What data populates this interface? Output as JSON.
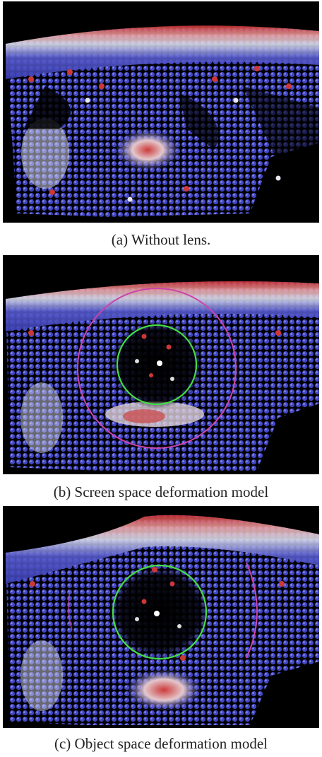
{
  "figure": {
    "panels": [
      {
        "id": "a",
        "caption": "(a) Without lens."
      },
      {
        "id": "b",
        "caption": "(b) Screen space deformation model"
      },
      {
        "id": "c",
        "caption": "(c) Object space deformation model"
      }
    ]
  },
  "colors": {
    "background": "#000000",
    "particle_low": "#3b3fc0",
    "particle_mid": "#d8d8e6",
    "particle_high": "#c83a3a",
    "lens_inner": "#44dd44",
    "lens_outer": "#cc44aa"
  }
}
